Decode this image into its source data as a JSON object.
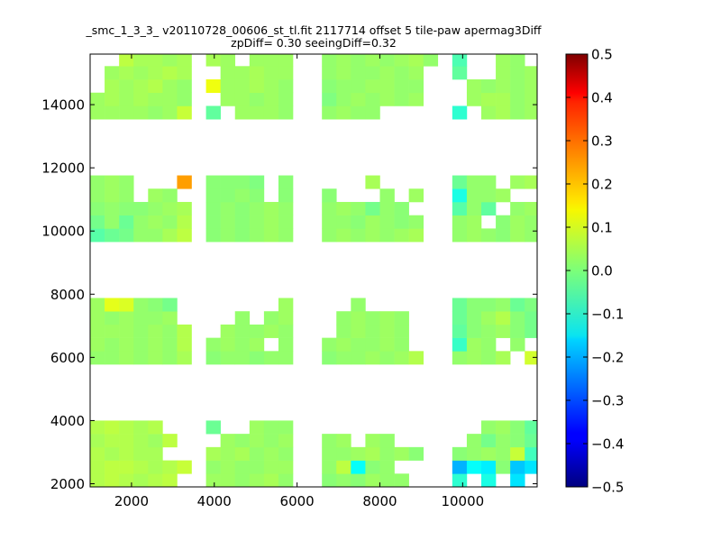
{
  "chart_data": {
    "type": "heatmap",
    "title": "_smc_1_3_3_ v20110728_00606_st_tl.fit 2117714 offset 5 tile-paw apermag3Diff",
    "subtitle": "zpDiff= 0.30 seeingDiff=0.32",
    "xlabel": "",
    "ylabel": "",
    "xlim": [
      1000,
      11800
    ],
    "ylim": [
      1900,
      15600
    ],
    "xticks": [
      2000,
      4000,
      6000,
      8000,
      10000
    ],
    "yticks": [
      2000,
      4000,
      6000,
      8000,
      10000,
      12000,
      14000
    ],
    "xtick_labels": [
      "2000",
      "4000",
      "6000",
      "8000",
      "10000"
    ],
    "ytick_labels": [
      "2000",
      "4000",
      "6000",
      "8000",
      "10000",
      "12000",
      "14000"
    ],
    "colorbar": {
      "colormap": "jet",
      "vmin": -0.5,
      "vmax": 0.5,
      "ticks": [
        0.5,
        0.4,
        0.3,
        0.2,
        0.1,
        0.0,
        -0.1,
        -0.2,
        -0.3,
        -0.4,
        -0.5
      ],
      "tick_labels": [
        "0.5",
        "0.4",
        "0.3",
        "0.2",
        "0.1",
        "0.0",
        "−0.1",
        "−0.2",
        "−0.3",
        "−0.4",
        "−0.5"
      ]
    },
    "grid": false,
    "legend": "none",
    "cell_size": [
      350,
      420
    ],
    "x_columns": [
      1175,
      1525,
      1875,
      2225,
      2575,
      2925,
      3275,
      3625,
      3975,
      4325,
      4675,
      5025,
      5375,
      5725,
      6075,
      6425,
      6775,
      7125,
      7475,
      7825,
      8175,
      8525,
      8875,
      9225,
      9575,
      9925,
      10275,
      10625,
      10975,
      11325,
      11675
    ],
    "y_rows": [
      2110,
      2530,
      2950,
      3370,
      3790,
      5990,
      6410,
      6830,
      7250,
      7670,
      9870,
      10290,
      10710,
      11130,
      11550,
      13750,
      14170,
      14590,
      15010,
      15430
    ],
    "rows": [
      {
        "y": 2110,
        "values": [
          0.05,
          0.06,
          0.05,
          0.04,
          0.05,
          0.06,
          null,
          null,
          0.03,
          0.03,
          0.02,
          0.03,
          0.04,
          0.02,
          null,
          null,
          0.01,
          0.02,
          0.01,
          0.03,
          0.02,
          0.02,
          null,
          null,
          null,
          -0.08,
          null,
          -0.1,
          null,
          -0.15,
          null
        ]
      },
      {
        "y": 2530,
        "values": [
          0.05,
          0.06,
          0.06,
          0.05,
          0.04,
          0.05,
          0.07,
          null,
          0.02,
          0.03,
          0.02,
          0.02,
          0.03,
          0.03,
          null,
          null,
          0.02,
          0.06,
          -0.12,
          0.01,
          0.02,
          null,
          null,
          null,
          null,
          -0.2,
          -0.12,
          -0.14,
          0.01,
          -0.18,
          -0.15
        ]
      },
      {
        "y": 2950,
        "values": [
          0.05,
          0.04,
          0.05,
          0.04,
          0.04,
          null,
          null,
          null,
          0.04,
          0.03,
          0.04,
          0.02,
          0.03,
          0.02,
          null,
          null,
          0.02,
          0.02,
          0.03,
          0.04,
          0.02,
          0.03,
          0.01,
          null,
          null,
          0.01,
          0.02,
          0.03,
          0.02,
          0.07,
          -0.06
        ]
      },
      {
        "y": 3370,
        "values": [
          0.04,
          0.05,
          0.05,
          0.04,
          0.03,
          0.06,
          null,
          null,
          null,
          0.03,
          0.02,
          0.03,
          0.02,
          0.03,
          null,
          null,
          0.02,
          0.03,
          null,
          0.03,
          0.02,
          null,
          null,
          null,
          null,
          null,
          0.02,
          -0.01,
          0.02,
          0.01,
          -0.02
        ]
      },
      {
        "y": 3790,
        "values": [
          0.05,
          0.06,
          0.05,
          0.04,
          0.05,
          null,
          null,
          null,
          -0.02,
          null,
          null,
          0.03,
          0.02,
          0.02,
          null,
          null,
          null,
          null,
          null,
          null,
          null,
          null,
          null,
          null,
          null,
          null,
          null,
          0.02,
          0.03,
          0.01,
          -0.03
        ]
      },
      {
        "y": 5990,
        "values": [
          0.02,
          0.02,
          0.03,
          0.02,
          0.03,
          0.02,
          0.04,
          null,
          0.01,
          0.02,
          0.02,
          0.01,
          0.02,
          0.02,
          null,
          null,
          0.01,
          0.02,
          0.02,
          0.03,
          0.02,
          0.03,
          0.05,
          null,
          null,
          0.02,
          0.03,
          0.02,
          0.04,
          null,
          0.08
        ]
      },
      {
        "y": 6410,
        "values": [
          0.03,
          0.02,
          0.03,
          0.02,
          0.03,
          0.02,
          0.05,
          null,
          0.02,
          0.03,
          0.02,
          0.03,
          null,
          0.02,
          null,
          null,
          0.02,
          0.03,
          0.02,
          0.02,
          0.03,
          0.02,
          null,
          null,
          null,
          -0.07,
          0.03,
          0.02,
          null,
          0.02,
          null
        ]
      },
      {
        "y": 6830,
        "values": [
          0.03,
          0.03,
          0.03,
          0.02,
          0.03,
          0.02,
          0.05,
          null,
          null,
          0.03,
          0.02,
          0.02,
          0.03,
          0.02,
          null,
          null,
          null,
          0.02,
          0.03,
          0.02,
          0.03,
          0.02,
          null,
          null,
          null,
          -0.03,
          0.01,
          0.02,
          0.03,
          0.01,
          -0.01
        ]
      },
      {
        "y": 7250,
        "values": [
          0.03,
          0.02,
          0.03,
          0.02,
          0.02,
          0.03,
          null,
          null,
          null,
          null,
          0.02,
          null,
          0.02,
          0.03,
          null,
          null,
          null,
          0.02,
          0.03,
          0.02,
          0.03,
          0.02,
          null,
          null,
          null,
          -0.02,
          0.01,
          0.03,
          0.05,
          0.01,
          -0.01
        ]
      },
      {
        "y": 7670,
        "values": [
          0.03,
          0.1,
          0.09,
          0.02,
          0.01,
          -0.01,
          null,
          null,
          null,
          null,
          null,
          null,
          null,
          0.03,
          null,
          null,
          null,
          null,
          0.02,
          null,
          null,
          null,
          null,
          null,
          null,
          -0.02,
          0.01,
          0.01,
          0.02,
          -0.02,
          0.0
        ]
      },
      {
        "y": 9870,
        "values": [
          -0.04,
          -0.02,
          -0.01,
          0.02,
          0.02,
          0.04,
          0.06,
          null,
          0.01,
          0.02,
          0.01,
          0.02,
          0.03,
          0.02,
          null,
          null,
          0.02,
          0.03,
          0.02,
          0.03,
          0.02,
          0.03,
          0.04,
          null,
          null,
          0.02,
          0.03,
          0.02,
          0.01,
          0.03,
          0.02
        ]
      },
      {
        "y": 10290,
        "values": [
          -0.01,
          0.02,
          -0.02,
          0.02,
          0.03,
          0.02,
          0.05,
          null,
          0.01,
          0.02,
          0.01,
          0.02,
          0.03,
          0.02,
          null,
          null,
          0.02,
          0.02,
          0.01,
          0.03,
          0.02,
          0.01,
          0.02,
          null,
          null,
          0.02,
          0.03,
          null,
          0.01,
          0.03,
          0.02
        ]
      },
      {
        "y": 10710,
        "values": [
          0.01,
          0.02,
          0.01,
          0.01,
          0.02,
          0.03,
          0.04,
          null,
          0.01,
          0.02,
          0.01,
          0.02,
          0.03,
          0.02,
          null,
          null,
          0.02,
          0.03,
          0.02,
          -0.01,
          0.02,
          0.01,
          null,
          null,
          null,
          -0.04,
          0.02,
          -0.03,
          null,
          0.02,
          0.03
        ]
      },
      {
        "y": 11130,
        "values": [
          0.02,
          0.03,
          0.02,
          null,
          0.03,
          0.02,
          null,
          null,
          0.01,
          0.01,
          0.02,
          0.01,
          null,
          0.01,
          null,
          null,
          0.01,
          null,
          null,
          null,
          0.02,
          null,
          0.03,
          null,
          null,
          -0.1,
          0.02,
          0.02,
          0.03,
          null,
          null
        ]
      },
      {
        "y": 11550,
        "values": [
          0.02,
          0.03,
          0.02,
          null,
          null,
          null,
          0.22,
          null,
          0.01,
          0.01,
          0.01,
          0.0,
          null,
          0.01,
          null,
          null,
          null,
          null,
          null,
          0.04,
          null,
          null,
          null,
          null,
          null,
          -0.02,
          0.02,
          0.02,
          null,
          0.03,
          0.04
        ]
      },
      {
        "y": 13750,
        "values": [
          0.03,
          0.03,
          0.03,
          0.03,
          0.02,
          0.03,
          0.07,
          null,
          -0.03,
          null,
          0.03,
          0.03,
          0.03,
          0.02,
          null,
          null,
          0.02,
          0.03,
          0.02,
          0.02,
          null,
          null,
          null,
          null,
          null,
          -0.08,
          null,
          0.03,
          0.04,
          0.02,
          0.03
        ]
      },
      {
        "y": 14170,
        "values": [
          0.03,
          0.04,
          0.03,
          0.04,
          0.03,
          0.03,
          0.02,
          null,
          null,
          0.03,
          0.03,
          0.02,
          0.03,
          0.02,
          null,
          null,
          0.0,
          0.02,
          0.03,
          0.02,
          0.03,
          0.02,
          0.03,
          null,
          null,
          null,
          0.03,
          0.04,
          0.04,
          0.02,
          0.03
        ]
      },
      {
        "y": 14590,
        "values": [
          null,
          0.04,
          0.03,
          0.04,
          0.05,
          0.03,
          0.02,
          null,
          0.11,
          0.03,
          0.03,
          0.04,
          0.03,
          0.02,
          null,
          null,
          0.01,
          0.02,
          0.02,
          0.03,
          0.03,
          0.02,
          0.02,
          null,
          null,
          null,
          0.03,
          0.02,
          0.03,
          0.02,
          0.03
        ]
      },
      {
        "y": 15010,
        "values": [
          null,
          0.03,
          0.04,
          0.03,
          0.04,
          0.05,
          0.04,
          null,
          null,
          0.03,
          0.03,
          0.04,
          0.03,
          0.03,
          null,
          null,
          0.02,
          0.03,
          0.02,
          0.02,
          0.03,
          0.02,
          0.03,
          null,
          null,
          -0.03,
          null,
          null,
          0.03,
          0.02,
          0.03
        ]
      },
      {
        "y": 15430,
        "values": [
          null,
          null,
          0.06,
          0.04,
          0.04,
          0.03,
          0.04,
          null,
          0.04,
          0.03,
          null,
          0.03,
          0.03,
          0.03,
          null,
          null,
          0.02,
          0.03,
          0.02,
          0.03,
          0.02,
          0.03,
          0.04,
          0.02,
          null,
          -0.05,
          null,
          null,
          0.03,
          0.02,
          null
        ]
      }
    ]
  }
}
